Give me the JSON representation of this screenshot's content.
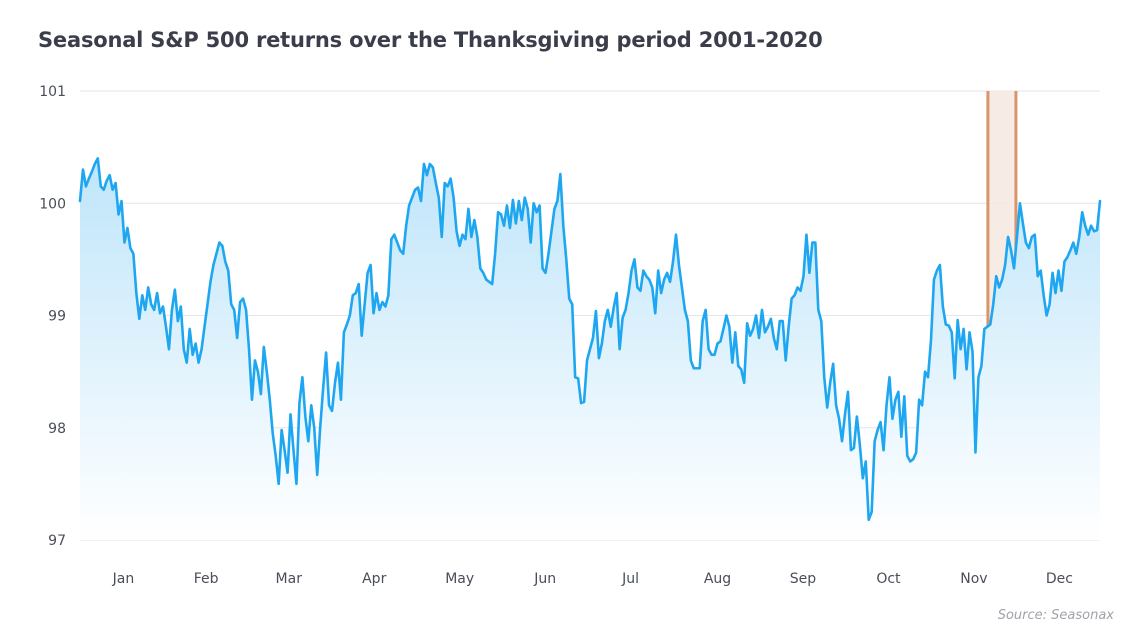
{
  "colors": {
    "line": "#1ea7f0",
    "area_top": "#bfe5fa",
    "area_bottom": "#ffffff",
    "grid": "#e4e6ea",
    "highlight_fill": "#f4e9e0",
    "highlight_edge": "#d9956b",
    "text": "#3b3e4a"
  },
  "chart_data": {
    "type": "area",
    "title": "Seasonal S&P 500 returns over the Thanksgiving period 2001-2020",
    "source": "Source: Seasonax",
    "xlabel": "",
    "ylabel": "",
    "ylim": [
      97,
      101
    ],
    "y_ticks": [
      "97",
      "98",
      "99",
      "100",
      "101"
    ],
    "y_tick_values": [
      97,
      98,
      99,
      100,
      101
    ],
    "grid": true,
    "legend": "none",
    "x_tick_labels": [
      "Jan",
      "Feb",
      "Mar",
      "Apr",
      "May",
      "Jun",
      "Jul",
      "Aug",
      "Sep",
      "Oct",
      "Nov",
      "Dec"
    ],
    "highlight_range": [
      "Nov 21",
      "Dec 1"
    ],
    "series": [
      {
        "x_start": "Jan 1",
        "x_end": "Dec 31",
        "values": [
          100.02,
          100.3,
          100.15,
          100.22,
          100.28,
          100.35,
          100.4,
          100.15,
          100.12,
          100.2,
          100.25,
          100.12,
          100.18,
          99.9,
          100.02,
          99.65,
          99.78,
          99.6,
          99.55,
          99.2,
          98.97,
          99.18,
          99.05,
          99.25,
          99.1,
          99.05,
          99.2,
          99.02,
          99.08,
          98.9,
          98.7,
          99.05,
          99.23,
          98.95,
          99.08,
          98.7,
          98.58,
          98.88,
          98.65,
          98.75,
          98.58,
          98.7,
          98.9,
          99.1,
          99.3,
          99.45,
          99.55,
          99.65,
          99.62,
          99.48,
          99.4,
          99.1,
          99.05,
          98.8,
          99.12,
          99.15,
          99.05,
          98.7,
          98.25,
          98.6,
          98.5,
          98.3,
          98.72,
          98.5,
          98.25,
          97.95,
          97.75,
          97.5,
          97.98,
          97.8,
          97.6,
          98.12,
          97.8,
          97.5,
          98.22,
          98.45,
          98.1,
          97.88,
          98.2,
          98.0,
          97.58,
          98.0,
          98.35,
          98.67,
          98.2,
          98.15,
          98.4,
          98.58,
          98.25,
          98.85,
          98.92,
          99.0,
          99.18,
          99.2,
          99.28,
          98.82,
          99.1,
          99.38,
          99.45,
          99.02,
          99.2,
          99.05,
          99.12,
          99.08,
          99.18,
          99.68,
          99.72,
          99.65,
          99.58,
          99.55,
          99.8,
          99.98,
          100.05,
          100.12,
          100.14,
          100.02,
          100.35,
          100.25,
          100.35,
          100.32,
          100.18,
          100.05,
          99.7,
          100.18,
          100.15,
          100.22,
          100.05,
          99.75,
          99.62,
          99.72,
          99.68,
          99.95,
          99.7,
          99.85,
          99.7,
          99.42,
          99.38,
          99.32,
          99.3,
          99.28,
          99.55,
          99.92,
          99.9,
          99.8,
          99.98,
          99.78,
          100.03,
          99.82,
          100.02,
          99.85,
          100.05,
          99.95,
          99.65,
          100.0,
          99.92,
          99.98,
          99.42,
          99.38,
          99.55,
          99.75,
          99.95,
          100.02,
          100.26,
          99.8,
          99.5,
          99.15,
          99.1,
          98.45,
          98.44,
          98.22,
          98.23,
          98.6,
          98.7,
          98.8,
          99.04,
          98.62,
          98.75,
          98.95,
          99.05,
          98.9,
          99.07,
          99.2,
          98.7,
          98.98,
          99.05,
          99.2,
          99.4,
          99.5,
          99.25,
          99.22,
          99.4,
          99.35,
          99.32,
          99.25,
          99.02,
          99.4,
          99.2,
          99.32,
          99.38,
          99.3,
          99.48,
          99.72,
          99.45,
          99.25,
          99.05,
          98.95,
          98.6,
          98.53,
          98.53,
          98.53,
          98.95,
          99.05,
          98.7,
          98.65,
          98.65,
          98.75,
          98.77,
          98.88,
          99.0,
          98.9,
          98.58,
          98.85,
          98.55,
          98.52,
          98.4,
          98.93,
          98.82,
          98.88,
          99.0,
          98.8,
          99.05,
          98.85,
          98.9,
          98.97,
          98.8,
          98.7,
          98.95,
          98.95,
          98.6,
          98.9,
          99.15,
          99.18,
          99.25,
          99.22,
          99.35,
          99.72,
          99.38,
          99.65,
          99.65,
          99.05,
          98.95,
          98.45,
          98.18,
          98.4,
          98.57,
          98.2,
          98.08,
          97.88,
          98.12,
          98.32,
          97.8,
          97.82,
          98.1,
          97.85,
          97.55,
          97.7,
          97.18,
          97.25,
          97.88,
          97.98,
          98.05,
          97.8,
          98.2,
          98.45,
          98.08,
          98.25,
          98.32,
          97.92,
          98.28,
          97.75,
          97.7,
          97.72,
          97.78,
          98.25,
          98.2,
          98.5,
          98.45,
          98.78,
          99.32,
          99.4,
          99.45,
          99.08,
          98.92,
          98.91,
          98.85,
          98.44,
          98.96,
          98.7,
          98.88,
          98.52,
          98.85,
          98.68,
          97.78,
          98.45,
          98.55,
          98.88,
          98.9,
          98.92,
          99.1,
          99.35,
          99.25,
          99.32,
          99.45,
          99.7,
          99.58,
          99.42,
          99.7,
          100.0,
          99.82,
          99.65,
          99.6,
          99.7,
          99.72,
          99.35,
          99.4,
          99.18,
          99.0,
          99.1,
          99.38,
          99.2,
          99.4,
          99.22,
          99.48,
          99.52,
          99.58,
          99.65,
          99.55,
          99.7,
          99.92,
          99.8,
          99.72,
          99.8,
          99.75,
          99.76,
          100.02
        ]
      }
    ]
  }
}
